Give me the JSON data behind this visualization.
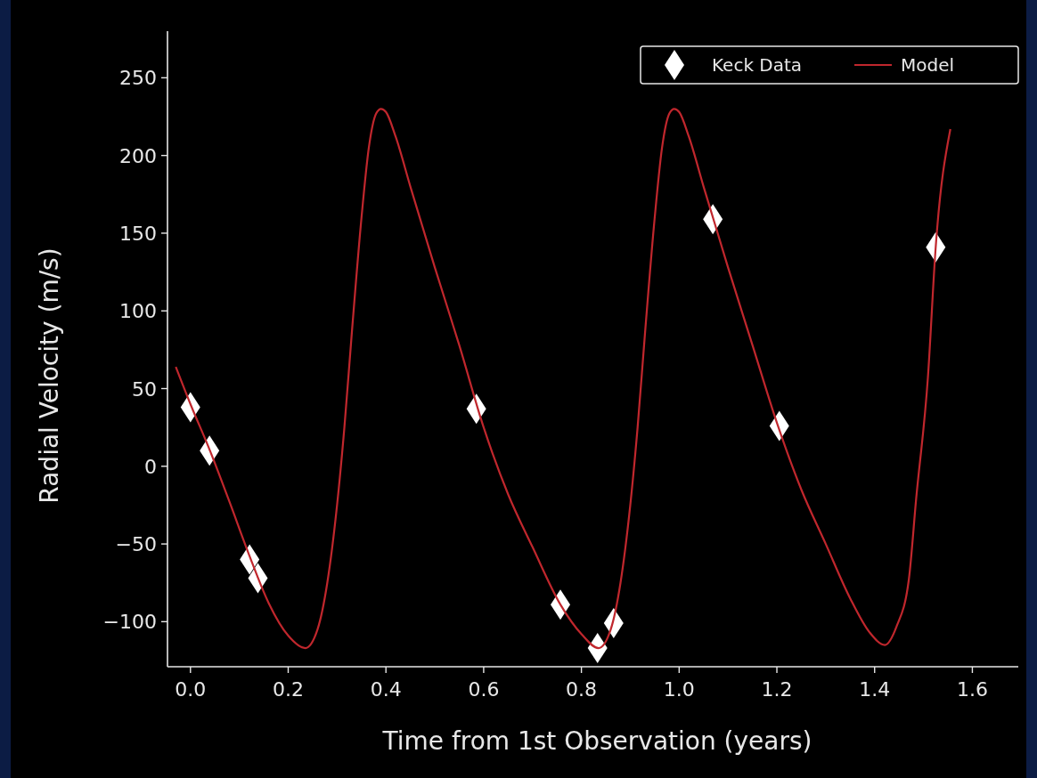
{
  "chart_data": {
    "type": "scatter",
    "xlabel": "Time from 1st Observation (years)",
    "ylabel": "Radial Velocity (m/s)",
    "xlim": [
      -0.047,
      1.694
    ],
    "ylim": [
      -129,
      280
    ],
    "xticks": [
      {
        "value": 0,
        "label": "0.0"
      },
      {
        "value": 0.2,
        "label": "0.2"
      },
      {
        "value": 0.4,
        "label": "0.4"
      },
      {
        "value": 0.6,
        "label": "0.6"
      },
      {
        "value": 0.8,
        "label": "0.8"
      },
      {
        "value": 1,
        "label": "1.0"
      },
      {
        "value": 1.2,
        "label": "1.2"
      },
      {
        "value": 1.4,
        "label": "1.4"
      },
      {
        "value": 1.6,
        "label": "1.6"
      }
    ],
    "yticks": [
      {
        "value": -100,
        "label": "−100"
      },
      {
        "value": -50,
        "label": "−50"
      },
      0,
      50,
      100,
      150,
      200,
      250
    ],
    "legend": "top right",
    "grid": false,
    "series": [
      {
        "name": "Keck Data",
        "marker": "diamond",
        "color": "#ffffff",
        "x": [
          0,
          0.039,
          0.121,
          0.138,
          0.585,
          0.757,
          0.833,
          0.866,
          1.069,
          1.205,
          1.525
        ],
        "values": [
          38,
          10,
          -60,
          -72,
          37,
          -89,
          -117,
          -101,
          159,
          26,
          141
        ]
      },
      {
        "name": "Model",
        "type": "line",
        "line_style": "solid",
        "color": "#c0272d",
        "x": [
          -0.03,
          0,
          0.04,
          0.08,
          0.12,
          0.16,
          0.2,
          0.235,
          0.26,
          0.28,
          0.3,
          0.315,
          0.33,
          0.35,
          0.365,
          0.38,
          0.39,
          0.4,
          0.42,
          0.45,
          0.5,
          0.55,
          0.6,
          0.65,
          0.7,
          0.757,
          0.8,
          0.835,
          0.86,
          0.88,
          0.9,
          0.915,
          0.93,
          0.95,
          0.965,
          0.98,
          0.99,
          1,
          1.02,
          1.05,
          1.1,
          1.15,
          1.2,
          1.25,
          1.3,
          1.35,
          1.39,
          1.421,
          1.445,
          1.47,
          1.485,
          1.509,
          1.525,
          1.555
        ],
        "values": [
          64,
          40,
          10,
          -23,
          -57,
          -88,
          -109,
          -117,
          -105,
          -75,
          -25,
          25,
          85,
          160,
          205,
          227,
          230,
          228,
          212,
          180,
          128,
          78,
          25,
          -18,
          -52,
          -89,
          -108,
          -117,
          -105,
          -75,
          -25,
          25,
          85,
          160,
          205,
          227,
          230,
          228,
          212,
          180,
          128,
          78,
          28,
          -15,
          -50,
          -85,
          -107,
          -115,
          -103,
          -73,
          -21,
          57,
          141,
          217
        ]
      }
    ]
  }
}
